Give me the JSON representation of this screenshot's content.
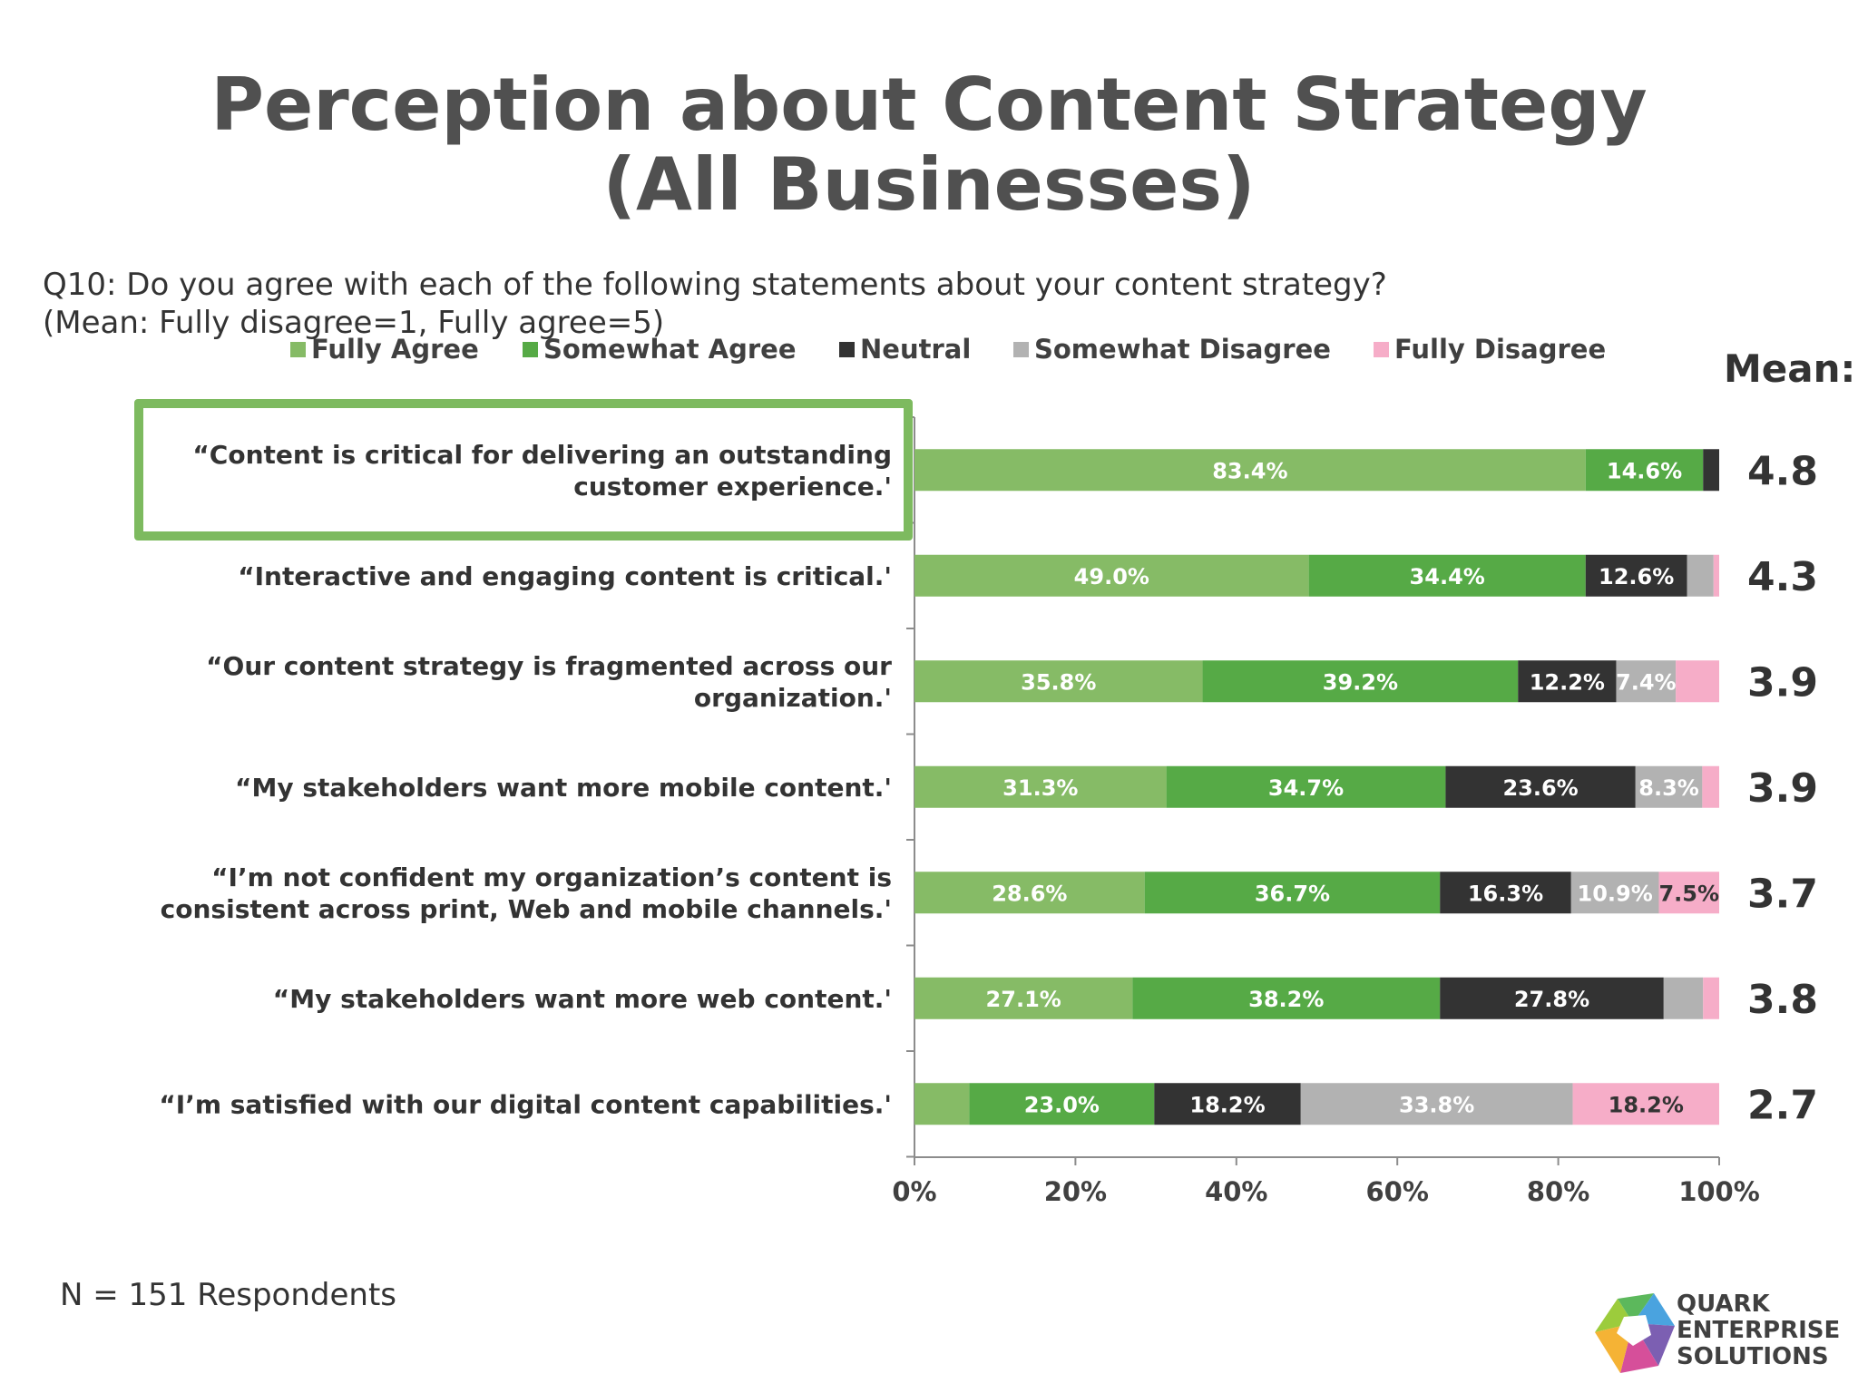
{
  "title_line1": "Perception about Content Strategy",
  "title_line2": "(All Businesses)",
  "question_line1": "Q10: Do you agree with each of the following statements about your content strategy?",
  "question_line2": "(Mean: Fully disagree=1, Fully agree=5)",
  "mean_header": "Mean:",
  "footnote": "N = 151 Respondents",
  "logo": {
    "line1": "QUARK",
    "line2": "ENTERPRISE",
    "line3": "SOLUTIONS"
  },
  "colors": {
    "fully_agree": "#86bb66",
    "somewhat_agree": "#56aa46",
    "neutral": "#333333",
    "somewhat_disagree": "#b2b2b2",
    "fully_disagree": "#f6adc8",
    "highlight": "#7dba5f"
  },
  "chart_data": {
    "type": "bar",
    "orientation": "horizontal",
    "stacked": true,
    "title": "Perception about Content Strategy (All Businesses)",
    "xlabel": "",
    "ylabel": "",
    "xlim": [
      0,
      100
    ],
    "x_ticks": [
      "0%",
      "20%",
      "40%",
      "60%",
      "80%",
      "100%"
    ],
    "legend_position": "top",
    "categories": [
      [
        "“Content is critical for delivering an outstanding",
        "customer experience.'"
      ],
      [
        "“Interactive and engaging content is critical.'"
      ],
      [
        "“Our content strategy is fragmented across our",
        "organization.'"
      ],
      [
        "“My stakeholders want more mobile content.'"
      ],
      [
        "“I’m not confident my organization’s content is",
        "consistent across print, Web and mobile channels.'"
      ],
      [
        "“My stakeholders want more web content.'"
      ],
      [
        "“I’m satisfied with our digital content capabilities.'"
      ]
    ],
    "series": [
      {
        "name": "Fully Agree",
        "values": [
          83.4,
          49.0,
          35.8,
          31.3,
          28.6,
          27.1,
          6.8
        ],
        "labels": [
          "83.4%",
          "49.0%",
          "35.8%",
          "31.3%",
          "28.6%",
          "27.1%",
          ""
        ]
      },
      {
        "name": "Somewhat Agree",
        "values": [
          14.6,
          34.4,
          39.2,
          34.7,
          36.7,
          38.2,
          23.0
        ],
        "labels": [
          "14.6%",
          "34.4%",
          "39.2%",
          "34.7%",
          "36.7%",
          "38.2%",
          "23.0%"
        ]
      },
      {
        "name": "Neutral",
        "values": [
          2.0,
          12.6,
          12.2,
          23.6,
          16.3,
          27.8,
          18.2
        ],
        "labels": [
          "",
          "12.6%",
          "12.2%",
          "23.6%",
          "16.3%",
          "27.8%",
          "18.2%"
        ]
      },
      {
        "name": "Somewhat Disagree",
        "values": [
          0,
          3.3,
          7.4,
          8.3,
          10.9,
          4.9,
          33.8
        ],
        "labels": [
          "",
          "",
          "7.4%",
          "8.3%",
          "10.9%",
          "",
          "33.8%"
        ]
      },
      {
        "name": "Fully Disagree",
        "values": [
          0,
          0.7,
          5.4,
          2.1,
          7.5,
          2.0,
          18.2
        ],
        "labels": [
          "",
          "",
          "",
          "",
          "7.5%",
          "",
          "18.2%"
        ]
      }
    ],
    "label_colors": [
      "#ffffff",
      "#ffffff",
      "#ffffff",
      "#ffffff",
      "#333333"
    ],
    "means": [
      "4.8",
      "4.3",
      "3.9",
      "3.9",
      "3.7",
      "3.8",
      "2.7"
    ],
    "highlighted_category": 0
  }
}
